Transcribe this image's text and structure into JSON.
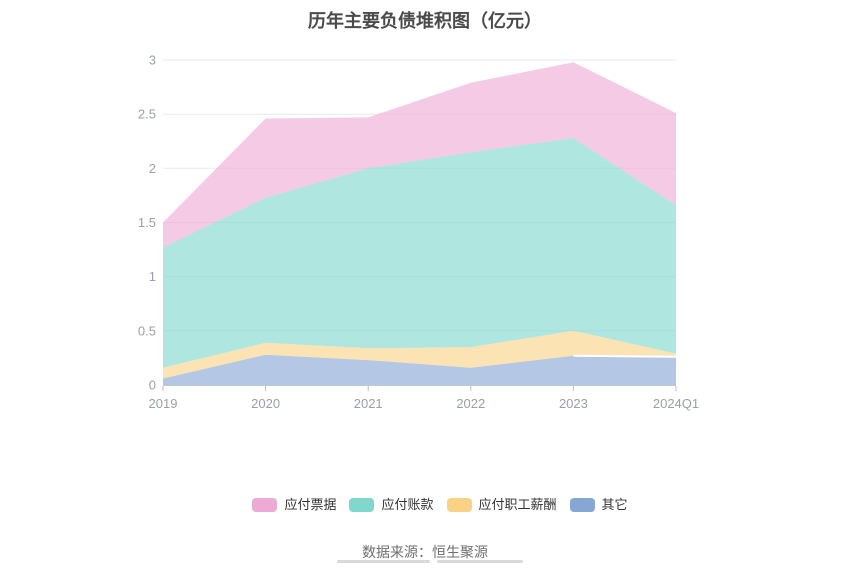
{
  "page_title": "历年主要负债堆积图（亿元）",
  "chart_data": {
    "type": "area",
    "stacked": true,
    "title": "历年主要负债堆积图（亿元）",
    "categories": [
      "2019",
      "2020",
      "2021",
      "2022",
      "2023",
      "2024Q1"
    ],
    "series": [
      {
        "name": "其它",
        "color": "#86a6d6",
        "values": [
          0.06,
          0.28,
          0.23,
          0.16,
          0.27,
          0.26
        ]
      },
      {
        "name": "应付职工薪酬",
        "color": "#fad286",
        "values": [
          0.1,
          0.11,
          0.11,
          0.19,
          0.23,
          0.03
        ]
      },
      {
        "name": "应付账款",
        "color": "#80d7cd",
        "values": [
          1.11,
          1.34,
          1.66,
          1.8,
          1.78,
          1.37
        ]
      },
      {
        "name": "应付票据",
        "color": "#edaad5",
        "values": [
          0.23,
          0.73,
          0.47,
          0.64,
          0.7,
          0.85
        ]
      }
    ],
    "stack_totals": [
      1.5,
      2.46,
      2.47,
      2.79,
      2.98,
      2.51
    ],
    "xlabel": "",
    "ylabel": "",
    "ylim": [
      0,
      3
    ],
    "ytick_step": 0.5,
    "yticks": [
      "0",
      "0.5",
      "1",
      "1.5",
      "2",
      "2.5",
      "3"
    ],
    "grid": true,
    "legend_position": "bottom"
  },
  "legend": {
    "items": [
      {
        "label": "应付票据",
        "color": "#edaad5"
      },
      {
        "label": "应付账款",
        "color": "#80d7cd"
      },
      {
        "label": "应付职工薪酬",
        "color": "#fad286"
      },
      {
        "label": "其它",
        "color": "#86a6d6"
      }
    ]
  },
  "footer": {
    "source": "数据来源：恒生聚源"
  },
  "colors": {
    "grid_line": "#e6e9f3",
    "axis_line": "#c3c7ce",
    "tick_mark": "#b9bdc6",
    "axis_label": "#9aa0a8",
    "title_text": "#4a4a4a"
  }
}
